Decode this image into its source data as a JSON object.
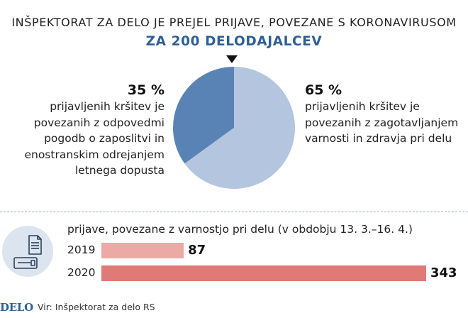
{
  "header": {
    "title": "INŠPEKTORAT ZA DELO JE PREJEL PRIJAVE, POVEZANE S KORONAVIRUSOM",
    "subtitle": "ZA 200 DELODAJALCEV"
  },
  "left_label": {
    "pct": "35 %",
    "text": "prijavljenih kršitev je povezanih z odpovedmi pogodb o zaposlitvi in enostranskim odrejanjem letnega dopusta"
  },
  "right_label": {
    "pct": "65 %",
    "text": "prijavljenih kršitev je povezanih z zagotavljanjem varnosti in zdravja pri delu"
  },
  "bar_section": {
    "title": "prijave, povezane z varnostjo pri delu (v obdobju 13. 3.–16. 4.)",
    "icon": "document-and-id-card-icon"
  },
  "footer": {
    "logo": "DELO",
    "source": "Vir: Inšpektorat za delo RS"
  },
  "colors": {
    "accent": "#2f5f95",
    "pie_small": "#5a83b5",
    "pie_large": "#b3c5df",
    "bar_2019": "#eda9a3",
    "bar_2020": "#e07a76"
  },
  "chart_data": [
    {
      "type": "pie",
      "title": "ZA 200 DELODAJALCEV",
      "slices": [
        {
          "label": "odpovedi pogodb o zaposlitvi in enostransko odrejanje letnega dopusta",
          "value": 35
        },
        {
          "label": "zagotavljanje varnosti in zdravja pri delu",
          "value": 65
        }
      ]
    },
    {
      "type": "bar",
      "title": "prijave, povezane z varnostjo pri delu (v obdobju 13. 3.–16. 4.)",
      "categories": [
        "2019",
        "2020"
      ],
      "values": [
        87,
        343
      ]
    }
  ]
}
